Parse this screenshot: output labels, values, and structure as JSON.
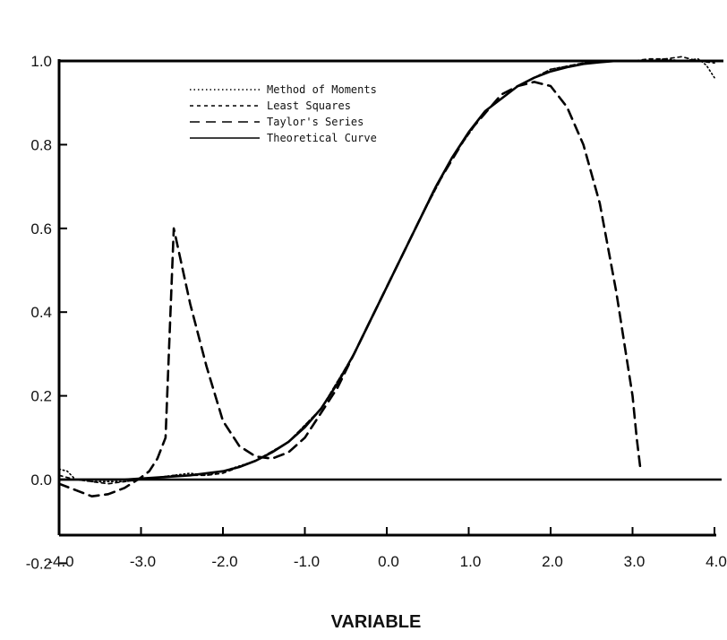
{
  "chart_data": {
    "type": "line",
    "title": "",
    "xlabel": "VARIABLE",
    "ylabel": "",
    "xlim": [
      -4.0,
      4.0
    ],
    "ylim": [
      -0.2,
      1.0
    ],
    "grid": false,
    "legend_position": "top-left",
    "x_ticks": [
      "-4.0",
      "-3.0",
      "-2.0",
      "-1.0",
      "0.0",
      "1.0",
      "2.0",
      "3.0",
      "4.0"
    ],
    "y_ticks": [
      "-0.2",
      "0.0",
      "0.2",
      "0.4",
      "0.6",
      "0.8",
      "1.0"
    ],
    "series": [
      {
        "name": "Method of Moments",
        "style": "dotted",
        "x": [
          -4.0,
          -3.9,
          -3.8,
          -3.6,
          -3.4,
          -3.2,
          -3.0,
          -2.8,
          -2.6,
          -2.4,
          -2.2,
          -2.0,
          -1.6,
          -1.2,
          -0.8,
          -0.4,
          0.0,
          0.4,
          0.8,
          1.2,
          1.6,
          2.0,
          2.4,
          2.8,
          3.0,
          3.2,
          3.4,
          3.6,
          3.8,
          3.9,
          4.0
        ],
        "y": [
          0.025,
          0.02,
          0.0,
          -0.005,
          -0.005,
          -0.005,
          0.0,
          0.005,
          0.01,
          0.015,
          0.01,
          0.02,
          0.045,
          0.09,
          0.17,
          0.3,
          0.46,
          0.62,
          0.77,
          0.88,
          0.94,
          0.98,
          0.995,
          1.0,
          1.0,
          1.0,
          1.005,
          1.0,
          1.005,
          0.99,
          0.96
        ]
      },
      {
        "name": "Least Squares",
        "style": "short-dash",
        "x": [
          -4.0,
          -3.8,
          -3.6,
          -3.4,
          -3.2,
          -3.0,
          -2.8,
          -2.6,
          -2.4,
          -2.2,
          -2.0,
          -1.6,
          -1.2,
          -0.8,
          -0.4,
          0.0,
          0.4,
          0.8,
          1.2,
          1.6,
          2.0,
          2.4,
          2.8,
          3.0,
          3.2,
          3.4,
          3.6,
          3.8,
          4.0
        ],
        "y": [
          0.01,
          0.0,
          -0.005,
          -0.01,
          -0.005,
          0.0,
          0.005,
          0.01,
          0.01,
          0.01,
          0.015,
          0.045,
          0.09,
          0.17,
          0.3,
          0.46,
          0.62,
          0.77,
          0.88,
          0.94,
          0.98,
          0.995,
          1.0,
          1.0,
          1.005,
          1.005,
          1.01,
          1.0,
          0.995
        ]
      },
      {
        "name": "Taylor's Series",
        "style": "long-dash",
        "x": [
          -4.0,
          -3.8,
          -3.6,
          -3.4,
          -3.2,
          -3.0,
          -2.9,
          -2.8,
          -2.7,
          -2.6,
          -2.4,
          -2.2,
          -2.0,
          -1.8,
          -1.6,
          -1.4,
          -1.2,
          -1.0,
          -0.6,
          -0.2,
          0.2,
          0.6,
          1.0,
          1.4,
          1.6,
          1.8,
          2.0,
          2.2,
          2.4,
          2.6,
          2.8,
          3.0,
          3.05,
          3.1
        ],
        "y": [
          -0.01,
          -0.025,
          -0.04,
          -0.035,
          -0.02,
          0.005,
          0.02,
          0.05,
          0.1,
          0.6,
          0.42,
          0.27,
          0.14,
          0.08,
          0.055,
          0.05,
          0.065,
          0.1,
          0.22,
          0.38,
          0.54,
          0.7,
          0.83,
          0.92,
          0.94,
          0.95,
          0.94,
          0.89,
          0.8,
          0.66,
          0.45,
          0.2,
          0.1,
          0.02
        ]
      },
      {
        "name": "Theoretical Curve",
        "style": "solid",
        "x": [
          -4.0,
          -3.6,
          -3.2,
          -2.8,
          -2.4,
          -2.0,
          -1.8,
          -1.6,
          -1.4,
          -1.2,
          -1.0,
          -0.8,
          -0.6,
          -0.4,
          -0.2,
          0.0,
          0.2,
          0.4,
          0.6,
          0.8,
          1.0,
          1.2,
          1.4,
          1.6,
          1.8,
          2.0,
          2.2,
          2.4,
          2.6,
          2.8,
          3.0,
          3.2,
          3.6,
          4.0
        ],
        "y": [
          0.0,
          0.0,
          0.0,
          0.005,
          0.01,
          0.02,
          0.03,
          0.045,
          0.065,
          0.09,
          0.125,
          0.17,
          0.23,
          0.3,
          0.38,
          0.46,
          0.54,
          0.62,
          0.7,
          0.77,
          0.83,
          0.88,
          0.91,
          0.94,
          0.96,
          0.975,
          0.985,
          0.993,
          0.997,
          1.0,
          1.0,
          1.0,
          1.0,
          1.0
        ]
      }
    ]
  }
}
